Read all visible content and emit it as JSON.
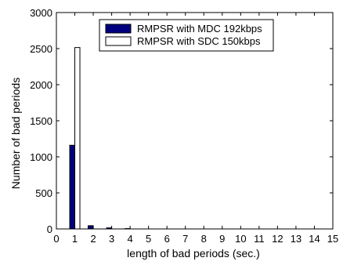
{
  "chart_data": {
    "type": "bar",
    "title": "",
    "xlabel": "length of bad periods (sec.)",
    "ylabel": "Number of bad periods",
    "xlim": [
      0,
      15
    ],
    "ylim": [
      0,
      3000
    ],
    "xticks": [
      0,
      1,
      2,
      3,
      4,
      5,
      6,
      7,
      8,
      9,
      10,
      11,
      12,
      13,
      14,
      15
    ],
    "yticks": [
      0,
      500,
      1000,
      1500,
      2000,
      2500,
      3000
    ],
    "grid": false,
    "legend_position": "top-center",
    "x": [
      1,
      2,
      3,
      4
    ],
    "series": [
      {
        "name": "RMPSR with MDC 192kbps",
        "values": [
          1160,
          45,
          15,
          5
        ],
        "color": "#00007f"
      },
      {
        "name": "RMPSR with SDC 150kbps",
        "values": [
          2515,
          0,
          0,
          0
        ],
        "color": "#ffffff"
      }
    ]
  }
}
